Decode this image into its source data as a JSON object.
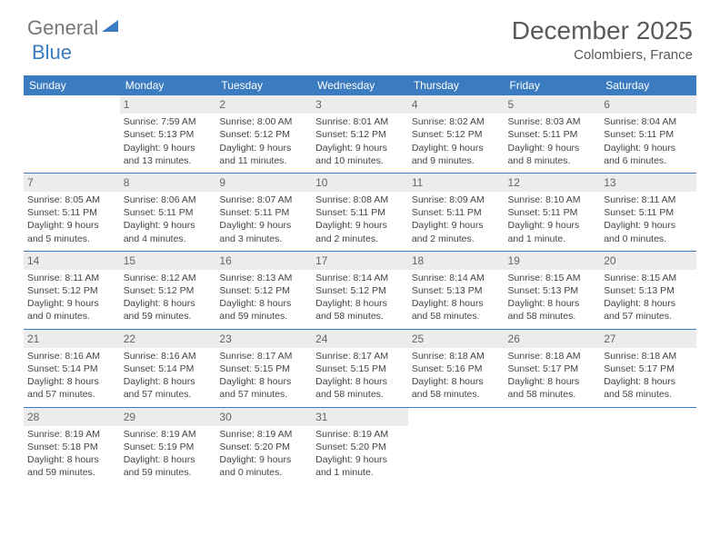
{
  "logo": {
    "general": "General",
    "blue": "Blue"
  },
  "title": "December 2025",
  "location": "Colombiers, France",
  "colors": {
    "header_bg": "#3b7bbf",
    "header_text": "#ffffff",
    "daynum_bg": "#ececec",
    "daynum_text": "#666666",
    "border": "#3b7bbf",
    "title_color": "#595959"
  },
  "day_headers": [
    "Sunday",
    "Monday",
    "Tuesday",
    "Wednesday",
    "Thursday",
    "Friday",
    "Saturday"
  ],
  "weeks": [
    [
      null,
      {
        "n": "1",
        "sr": "7:59 AM",
        "ss": "5:13 PM",
        "dl": "9 hours and 13 minutes."
      },
      {
        "n": "2",
        "sr": "8:00 AM",
        "ss": "5:12 PM",
        "dl": "9 hours and 11 minutes."
      },
      {
        "n": "3",
        "sr": "8:01 AM",
        "ss": "5:12 PM",
        "dl": "9 hours and 10 minutes."
      },
      {
        "n": "4",
        "sr": "8:02 AM",
        "ss": "5:12 PM",
        "dl": "9 hours and 9 minutes."
      },
      {
        "n": "5",
        "sr": "8:03 AM",
        "ss": "5:11 PM",
        "dl": "9 hours and 8 minutes."
      },
      {
        "n": "6",
        "sr": "8:04 AM",
        "ss": "5:11 PM",
        "dl": "9 hours and 6 minutes."
      }
    ],
    [
      {
        "n": "7",
        "sr": "8:05 AM",
        "ss": "5:11 PM",
        "dl": "9 hours and 5 minutes."
      },
      {
        "n": "8",
        "sr": "8:06 AM",
        "ss": "5:11 PM",
        "dl": "9 hours and 4 minutes."
      },
      {
        "n": "9",
        "sr": "8:07 AM",
        "ss": "5:11 PM",
        "dl": "9 hours and 3 minutes."
      },
      {
        "n": "10",
        "sr": "8:08 AM",
        "ss": "5:11 PM",
        "dl": "9 hours and 2 minutes."
      },
      {
        "n": "11",
        "sr": "8:09 AM",
        "ss": "5:11 PM",
        "dl": "9 hours and 2 minutes."
      },
      {
        "n": "12",
        "sr": "8:10 AM",
        "ss": "5:11 PM",
        "dl": "9 hours and 1 minute."
      },
      {
        "n": "13",
        "sr": "8:11 AM",
        "ss": "5:11 PM",
        "dl": "9 hours and 0 minutes."
      }
    ],
    [
      {
        "n": "14",
        "sr": "8:11 AM",
        "ss": "5:12 PM",
        "dl": "9 hours and 0 minutes."
      },
      {
        "n": "15",
        "sr": "8:12 AM",
        "ss": "5:12 PM",
        "dl": "8 hours and 59 minutes."
      },
      {
        "n": "16",
        "sr": "8:13 AM",
        "ss": "5:12 PM",
        "dl": "8 hours and 59 minutes."
      },
      {
        "n": "17",
        "sr": "8:14 AM",
        "ss": "5:12 PM",
        "dl": "8 hours and 58 minutes."
      },
      {
        "n": "18",
        "sr": "8:14 AM",
        "ss": "5:13 PM",
        "dl": "8 hours and 58 minutes."
      },
      {
        "n": "19",
        "sr": "8:15 AM",
        "ss": "5:13 PM",
        "dl": "8 hours and 58 minutes."
      },
      {
        "n": "20",
        "sr": "8:15 AM",
        "ss": "5:13 PM",
        "dl": "8 hours and 57 minutes."
      }
    ],
    [
      {
        "n": "21",
        "sr": "8:16 AM",
        "ss": "5:14 PM",
        "dl": "8 hours and 57 minutes."
      },
      {
        "n": "22",
        "sr": "8:16 AM",
        "ss": "5:14 PM",
        "dl": "8 hours and 57 minutes."
      },
      {
        "n": "23",
        "sr": "8:17 AM",
        "ss": "5:15 PM",
        "dl": "8 hours and 57 minutes."
      },
      {
        "n": "24",
        "sr": "8:17 AM",
        "ss": "5:15 PM",
        "dl": "8 hours and 58 minutes."
      },
      {
        "n": "25",
        "sr": "8:18 AM",
        "ss": "5:16 PM",
        "dl": "8 hours and 58 minutes."
      },
      {
        "n": "26",
        "sr": "8:18 AM",
        "ss": "5:17 PM",
        "dl": "8 hours and 58 minutes."
      },
      {
        "n": "27",
        "sr": "8:18 AM",
        "ss": "5:17 PM",
        "dl": "8 hours and 58 minutes."
      }
    ],
    [
      {
        "n": "28",
        "sr": "8:19 AM",
        "ss": "5:18 PM",
        "dl": "8 hours and 59 minutes."
      },
      {
        "n": "29",
        "sr": "8:19 AM",
        "ss": "5:19 PM",
        "dl": "8 hours and 59 minutes."
      },
      {
        "n": "30",
        "sr": "8:19 AM",
        "ss": "5:20 PM",
        "dl": "9 hours and 0 minutes."
      },
      {
        "n": "31",
        "sr": "8:19 AM",
        "ss": "5:20 PM",
        "dl": "9 hours and 1 minute."
      },
      null,
      null,
      null
    ]
  ],
  "labels": {
    "sunrise": "Sunrise:",
    "sunset": "Sunset:",
    "daylight": "Daylight:"
  }
}
